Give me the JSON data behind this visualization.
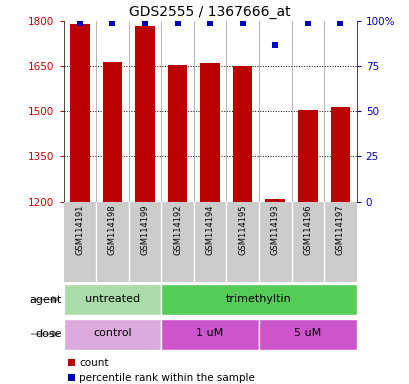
{
  "title": "GDS2555 / 1367666_at",
  "samples": [
    "GSM114191",
    "GSM114198",
    "GSM114199",
    "GSM114192",
    "GSM114194",
    "GSM114195",
    "GSM114193",
    "GSM114196",
    "GSM114197"
  ],
  "counts": [
    1790,
    1665,
    1785,
    1655,
    1660,
    1650,
    1210,
    1505,
    1515
  ],
  "percentiles": [
    99,
    99,
    99,
    99,
    99,
    99,
    87,
    99,
    99
  ],
  "ylim_left": [
    1200,
    1800
  ],
  "yticks_left": [
    1200,
    1350,
    1500,
    1650,
    1800
  ],
  "yticks_right": [
    0,
    25,
    50,
    75,
    100
  ],
  "ylim_right": [
    0,
    100
  ],
  "bar_color": "#bb0000",
  "dot_color": "#0000bb",
  "agent_colors": [
    "#aaddaa",
    "#55cc55"
  ],
  "agent_texts": [
    "untreated",
    "trimethyltin"
  ],
  "agent_ranges": [
    [
      0,
      3
    ],
    [
      3,
      9
    ]
  ],
  "dose_colors": [
    "#ddaadd",
    "#cc55cc",
    "#cc55cc"
  ],
  "dose_texts": [
    "control",
    "1 uM",
    "5 uM"
  ],
  "dose_ranges": [
    [
      0,
      3
    ],
    [
      3,
      6
    ],
    [
      6,
      9
    ]
  ],
  "legend_count_color": "#bb0000",
  "legend_pct_color": "#0000bb",
  "label_agent": "agent",
  "label_dose": "dose",
  "bg_color": "#ffffff",
  "tick_color_left": "#cc0000",
  "tick_color_right": "#0000bb",
  "sample_bg": "#cccccc"
}
